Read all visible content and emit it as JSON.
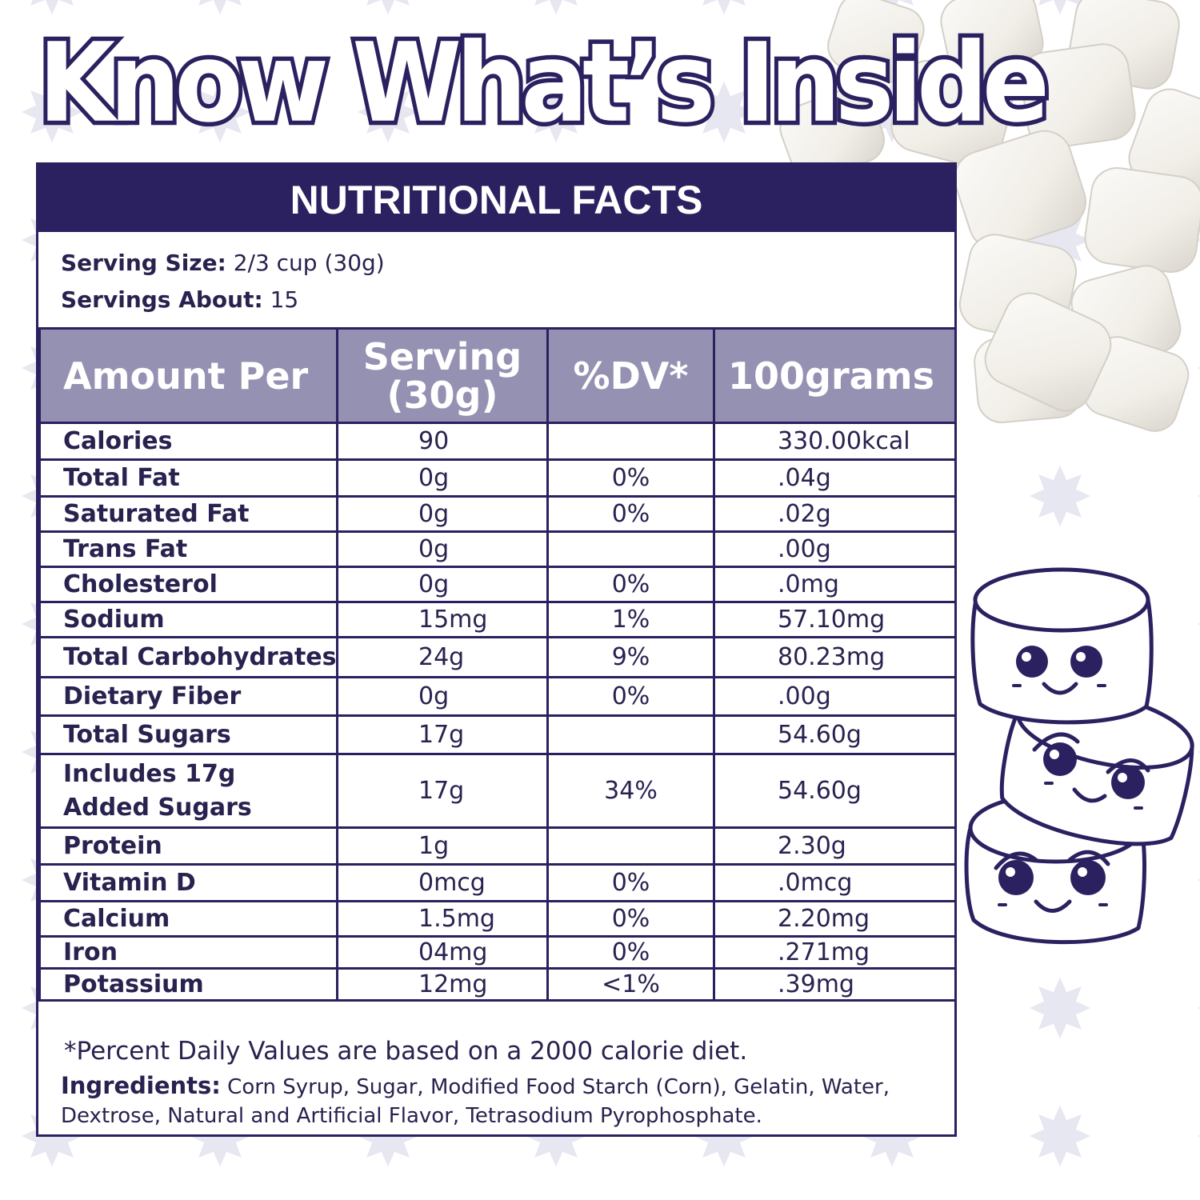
{
  "headline": "Know What’s Inside",
  "panel": {
    "title": "NUTRITIONAL FACTS",
    "serving_size_label": "Serving Size:",
    "serving_size_value": "2/3 cup (30g)",
    "servings_label": "Servings About:",
    "servings_value": "15"
  },
  "columns": [
    "Amount Per",
    "Serving (30g)",
    "%DV*",
    "100grams"
  ],
  "rows": [
    {
      "nutrient": "Calories",
      "serving": "90",
      "dv": "",
      "per100": "330.00kcal"
    },
    {
      "nutrient": "Total Fat",
      "serving": "0g",
      "dv": "0%",
      "per100": ".04g"
    },
    {
      "nutrient": "Saturated Fat",
      "serving": "0g",
      "dv": "0%",
      "per100": ".02g"
    },
    {
      "nutrient": "Trans Fat",
      "serving": "0g",
      "dv": "",
      "per100": ".00g"
    },
    {
      "nutrient": "Cholesterol",
      "serving": "0g",
      "dv": "0%",
      "per100": ".0mg"
    },
    {
      "nutrient": "Sodium",
      "serving": "15mg",
      "dv": "1%",
      "per100": "57.10mg"
    },
    {
      "nutrient": "Total Carbohydrates",
      "serving": "24g",
      "dv": "9%",
      "per100": "80.23mg"
    },
    {
      "nutrient": "Dietary Fiber",
      "serving": "0g",
      "dv": "0%",
      "per100": ".00g"
    },
    {
      "nutrient": "Total Sugars",
      "serving": "17g",
      "dv": "",
      "per100": "54.60g"
    },
    {
      "nutrient": "Includes 17g Added Sugars",
      "serving": "17g",
      "dv": "34%",
      "per100": "54.60g"
    },
    {
      "nutrient": "Protein",
      "serving": "1g",
      "dv": "",
      "per100": "2.30g"
    },
    {
      "nutrient": "Vitamin D",
      "serving": "0mcg",
      "dv": "0%",
      "per100": ".0mcg"
    },
    {
      "nutrient": "Calcium",
      "serving": "1.5mg",
      "dv": "0%",
      "per100": "2.20mg"
    },
    {
      "nutrient": "Iron",
      "serving": "04mg",
      "dv": "0%",
      "per100": ".271mg"
    },
    {
      "nutrient": "Potassium",
      "serving": "12mg",
      "dv": "<1%",
      "per100": ".39mg"
    }
  ],
  "footnote": "*Percent Daily Values are based on a 2000 calorie diet.",
  "ingredients_label": "Ingredients:",
  "ingredients_text": "Corn Syrup, Sugar, Modified Food Starch (Corn), Gelatin, Water, Dextrose, Natural and Artificial Flavor, Tetrasodium Pyrophosphate.",
  "colors": {
    "navy": "#2b2160",
    "header_gray": "#9591b2",
    "flake": "#e6e7f1",
    "marshmallow": "#f4f1ec"
  }
}
